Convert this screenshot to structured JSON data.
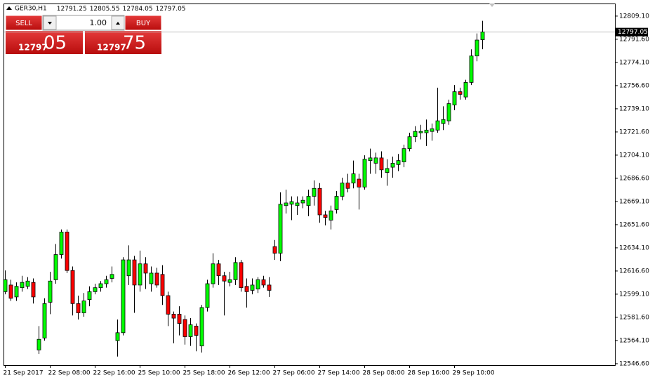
{
  "chart_data": {
    "type": "candlestick",
    "title": "GER30,H1",
    "categories": [
      "21 Sep 2017",
      null,
      null,
      null,
      null,
      null,
      null,
      null,
      "22 Sep 08:00",
      null,
      null,
      null,
      null,
      null,
      null,
      null,
      "22 Sep 16:00",
      null,
      null,
      null,
      null,
      null,
      null,
      null,
      "25 Sep 10:00",
      null,
      null,
      null,
      null,
      null,
      null,
      null,
      "25 Sep 18:00",
      null,
      null,
      null,
      null,
      null,
      null,
      null,
      "26 Sep 12:00",
      null,
      null,
      null,
      null,
      null,
      null,
      null,
      "27 Sep 06:00",
      null,
      null,
      null,
      null,
      null,
      null,
      null,
      "27 Sep 14:00",
      null,
      null,
      null,
      null,
      null,
      null,
      null,
      "28 Sep 08:00",
      null,
      null,
      null,
      null,
      null,
      null,
      null,
      "28 Sep 16:00",
      null,
      null,
      null,
      null,
      null,
      null,
      null,
      "29 Sep 10:00",
      null,
      null,
      null,
      null,
      null
    ],
    "open": [
      12601,
      12606,
      12597,
      12604,
      12605,
      12608,
      12557,
      12566,
      12593,
      12610,
      12629,
      12646,
      12617,
      12592,
      12585,
      12595,
      12601,
      12604,
      12607,
      12611,
      12564,
      12570,
      12613,
      12625,
      12606,
      12622,
      12607,
      12615,
      12614,
      12598,
      12584,
      12584,
      12580,
      12567,
      12575,
      12560,
      12589,
      12607,
      12622,
      12613,
      12608,
      12610,
      12623,
      12605,
      12602,
      12603,
      12610,
      12606,
      12635,
      12630,
      12666,
      12667,
      12666,
      12668,
      12666,
      12673,
      12679,
      12659,
      12655,
      12663,
      12673,
      12683,
      12683,
      12686,
      12680,
      12700,
      12698,
      12702,
      12691,
      12695,
      12697,
      12699,
      12709,
      12718,
      12721,
      12721,
      12722,
      12723,
      12728,
      12730,
      12742,
      12752,
      12748,
      12759,
      12779,
      12791.25
    ],
    "high": [
      12617,
      12610,
      12608,
      12613,
      12612,
      12611,
      12575,
      12596,
      12616,
      12637,
      12648,
      12648,
      12620,
      12598,
      12600,
      12605,
      12607,
      12609,
      12613,
      12620,
      12580,
      12627,
      12636,
      12628,
      12632,
      12627,
      12620,
      12619,
      12621,
      12601,
      12586,
      12590,
      12583,
      12581,
      12577,
      12591,
      12610,
      12630,
      12625,
      12616,
      12616,
      12627,
      12625,
      12611,
      12611,
      12612,
      12613,
      12612,
      12640,
      12676,
      12678,
      12673,
      12673,
      12673,
      12678,
      12685,
      12683,
      12662,
      12666,
      12677,
      12687,
      12690,
      12700,
      12690,
      12704,
      12709,
      12706,
      12707,
      12701,
      12703,
      12705,
      12712,
      12721,
      12726,
      12727,
      12731,
      12728,
      12755,
      12741,
      12746,
      12757,
      12755,
      12761,
      12784,
      12796,
      12805.55
    ],
    "low": [
      12599,
      12594,
      12594,
      12601,
      12603,
      12592,
      12554,
      12564,
      12584,
      12607,
      12626,
      12615,
      12583,
      12580,
      12582,
      12590,
      12599,
      12601,
      12604,
      12608,
      12552,
      12568,
      12606,
      12585,
      12601,
      12603,
      12601,
      12604,
      12591,
      12575,
      12562,
      12568,
      12561,
      12560,
      12556,
      12555,
      12586,
      12604,
      12606,
      12583,
      12605,
      12606,
      12601,
      12589,
      12599,
      12600,
      12604,
      12597,
      12625,
      12624,
      12660,
      12655,
      12659,
      12664,
      12658,
      12666,
      12653,
      12651,
      12648,
      12660,
      12670,
      12676,
      12679,
      12663,
      12678,
      12690,
      12690,
      12687,
      12681,
      12687,
      12692,
      12695,
      12707,
      12714,
      12716,
      12711,
      12715,
      12721,
      12723,
      12727,
      12738,
      12746,
      12746,
      12757,
      12775,
      12784.05
    ],
    "close": [
      12610,
      12596,
      12605,
      12608,
      12609,
      12597,
      12565,
      12592,
      12609,
      12629,
      12646,
      12617,
      12592,
      12585,
      12594,
      12601,
      12604,
      12607,
      12610,
      12614,
      12570,
      12625,
      12625,
      12606,
      12622,
      12615,
      12615,
      12606,
      12598,
      12584,
      12581,
      12577,
      12567,
      12576,
      12568,
      12589,
      12607,
      12622,
      12613,
      12609,
      12610,
      12623,
      12604,
      12601,
      12606,
      12610,
      12606,
      12602,
      12630,
      12667,
      12668,
      12669,
      12668,
      12670,
      12673,
      12679,
      12659,
      12657,
      12662,
      12673,
      12683,
      12679,
      12690,
      12680,
      12701,
      12702,
      12702,
      12693,
      12694,
      12698,
      12700,
      12709,
      12718,
      12722,
      12722,
      12723,
      12724,
      12730,
      12731,
      12743,
      12752,
      12750,
      12759,
      12779,
      12791,
      12797.05
    ],
    "up_color": "#00ff00",
    "down_color": "#ff0000",
    "ylim": [
      12545.5,
      12818.6
    ],
    "yticks": [
      {
        "value": 12809.1,
        "label": "12809.10"
      },
      {
        "value": 12791.6,
        "label": "12791.60"
      },
      {
        "value": 12774.1,
        "label": "12774.10"
      },
      {
        "value": 12756.6,
        "label": "12756.60"
      },
      {
        "value": 12739.1,
        "label": "12739.10"
      },
      {
        "value": 12721.6,
        "label": "12721.60"
      },
      {
        "value": 12704.1,
        "label": "12704.10"
      },
      {
        "value": 12686.6,
        "label": "12686.60"
      },
      {
        "value": 12669.1,
        "label": "12669.10"
      },
      {
        "value": 12651.6,
        "label": "12651.60"
      },
      {
        "value": 12634.1,
        "label": "12634.10"
      },
      {
        "value": 12616.6,
        "label": "12616.60"
      },
      {
        "value": 12599.1,
        "label": "12599.10"
      },
      {
        "value": 12581.6,
        "label": "12581.60"
      },
      {
        "value": 12564.1,
        "label": "12564.10"
      },
      {
        "value": 12546.6,
        "label": "12546.60"
      }
    ],
    "grid": false
  },
  "trade_panel": {
    "sell": "SELL",
    "buy": "BUY",
    "lot": "1.00",
    "bid_main": "12797",
    "bid_big": "05",
    "ask_main": "12797",
    "ask_big": "75"
  }
}
